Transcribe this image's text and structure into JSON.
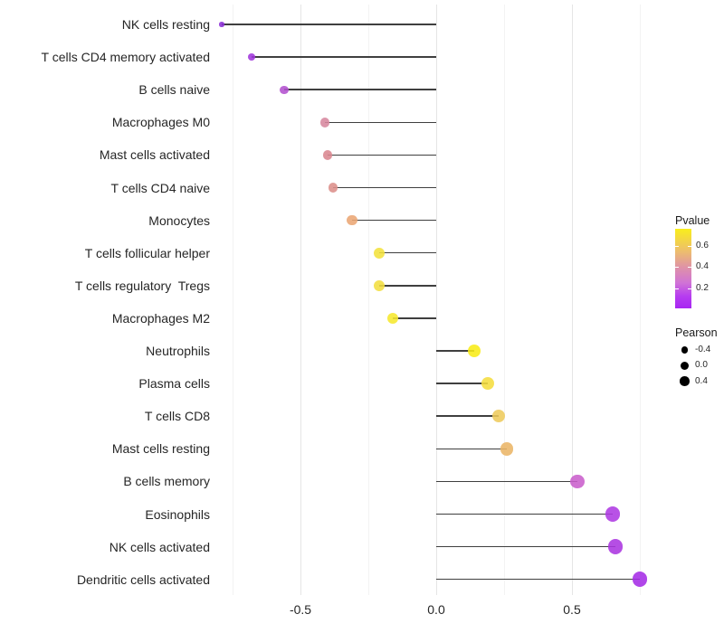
{
  "chart_data": {
    "type": "lollipop",
    "title": "",
    "xlabel": "",
    "ylabel": "",
    "x_tick_labels": [
      "-0.5",
      "0.0",
      "0.5"
    ],
    "x_tick_values": [
      -0.5,
      0.0,
      0.5
    ],
    "x_minor_gridlines": [
      -0.75,
      -0.25,
      0.25,
      0.75
    ],
    "xlim": [
      -0.81,
      0.81
    ],
    "baseline_x": 0.0,
    "grid": "vertical major + minor, no axis lines",
    "legend_position": "right",
    "stem_color": "#3f3f3f",
    "points": [
      {
        "label": "NK cells resting",
        "pearson": -0.79,
        "pvalue": 0.02,
        "color": "#8b2fd6"
      },
      {
        "label": "T cells CD4 memory activated",
        "pearson": -0.68,
        "pvalue": 0.08,
        "color": "#a037dc"
      },
      {
        "label": "B cells naive",
        "pearson": -0.56,
        "pvalue": 0.15,
        "color": "#b351cf"
      },
      {
        "label": "Macrophages M0",
        "pearson": -0.41,
        "pvalue": 0.38,
        "color": "#d7879e"
      },
      {
        "label": "Mast cells activated",
        "pearson": -0.4,
        "pvalue": 0.4,
        "color": "#d9868f"
      },
      {
        "label": "T cells CD4 naive",
        "pearson": -0.38,
        "pvalue": 0.42,
        "color": "#dc8e8a"
      },
      {
        "label": "Monocytes",
        "pearson": -0.31,
        "pvalue": 0.55,
        "color": "#eaa674"
      },
      {
        "label": "T cells follicular helper",
        "pearson": -0.21,
        "pvalue": 0.66,
        "color": "#f2e13c"
      },
      {
        "label": "T cells regulatory  Tregs",
        "pearson": -0.21,
        "pvalue": 0.66,
        "color": "#f2de40"
      },
      {
        "label": "Macrophages M2",
        "pearson": -0.16,
        "pvalue": 0.72,
        "color": "#f6e82e"
      },
      {
        "label": "Neutrophils",
        "pearson": 0.14,
        "pvalue": 0.75,
        "color": "#f8ec17"
      },
      {
        "label": "Plasma cells",
        "pearson": 0.19,
        "pvalue": 0.63,
        "color": "#f5dd3f"
      },
      {
        "label": "T cells CD8",
        "pearson": 0.23,
        "pvalue": 0.55,
        "color": "#eecb5c"
      },
      {
        "label": "Mast cells resting",
        "pearson": 0.26,
        "pvalue": 0.5,
        "color": "#eab566"
      },
      {
        "label": "B cells memory",
        "pearson": 0.52,
        "pvalue": 0.18,
        "color": "#ca5fcc"
      },
      {
        "label": "Eosinophils",
        "pearson": 0.65,
        "pvalue": 0.07,
        "color": "#ae3ae2"
      },
      {
        "label": "NK cells activated",
        "pearson": 0.66,
        "pvalue": 0.07,
        "color": "#ab36e0"
      },
      {
        "label": "Dendritic cells activated",
        "pearson": 0.75,
        "pvalue": 0.04,
        "color": "#a52ce6"
      }
    ],
    "legend": {
      "pvalue": {
        "title": "Pvalue",
        "tick_labels": [
          "0.6",
          "0.4",
          "0.2"
        ],
        "tick_values": [
          0.6,
          0.4,
          0.2
        ],
        "bar_range_top_to_bottom": [
          0.76,
          0.01
        ],
        "gradient_top_to_bottom": [
          "#f9ee1c",
          "#ecba72",
          "#df93a6",
          "#d073d6",
          "#b63cf0",
          "#a726f2"
        ]
      },
      "pearson": {
        "title": "Pearson",
        "size_labels": [
          "-0.4",
          "0.0",
          "0.4"
        ],
        "size_values": [
          -0.4,
          0.0,
          0.4
        ],
        "dot_color": "#000000"
      }
    },
    "colors": {
      "background": "#ffffff",
      "axis_text": "#262626",
      "grid_major": "#e5e5e5",
      "grid_minor": "#f3f3f3"
    }
  }
}
